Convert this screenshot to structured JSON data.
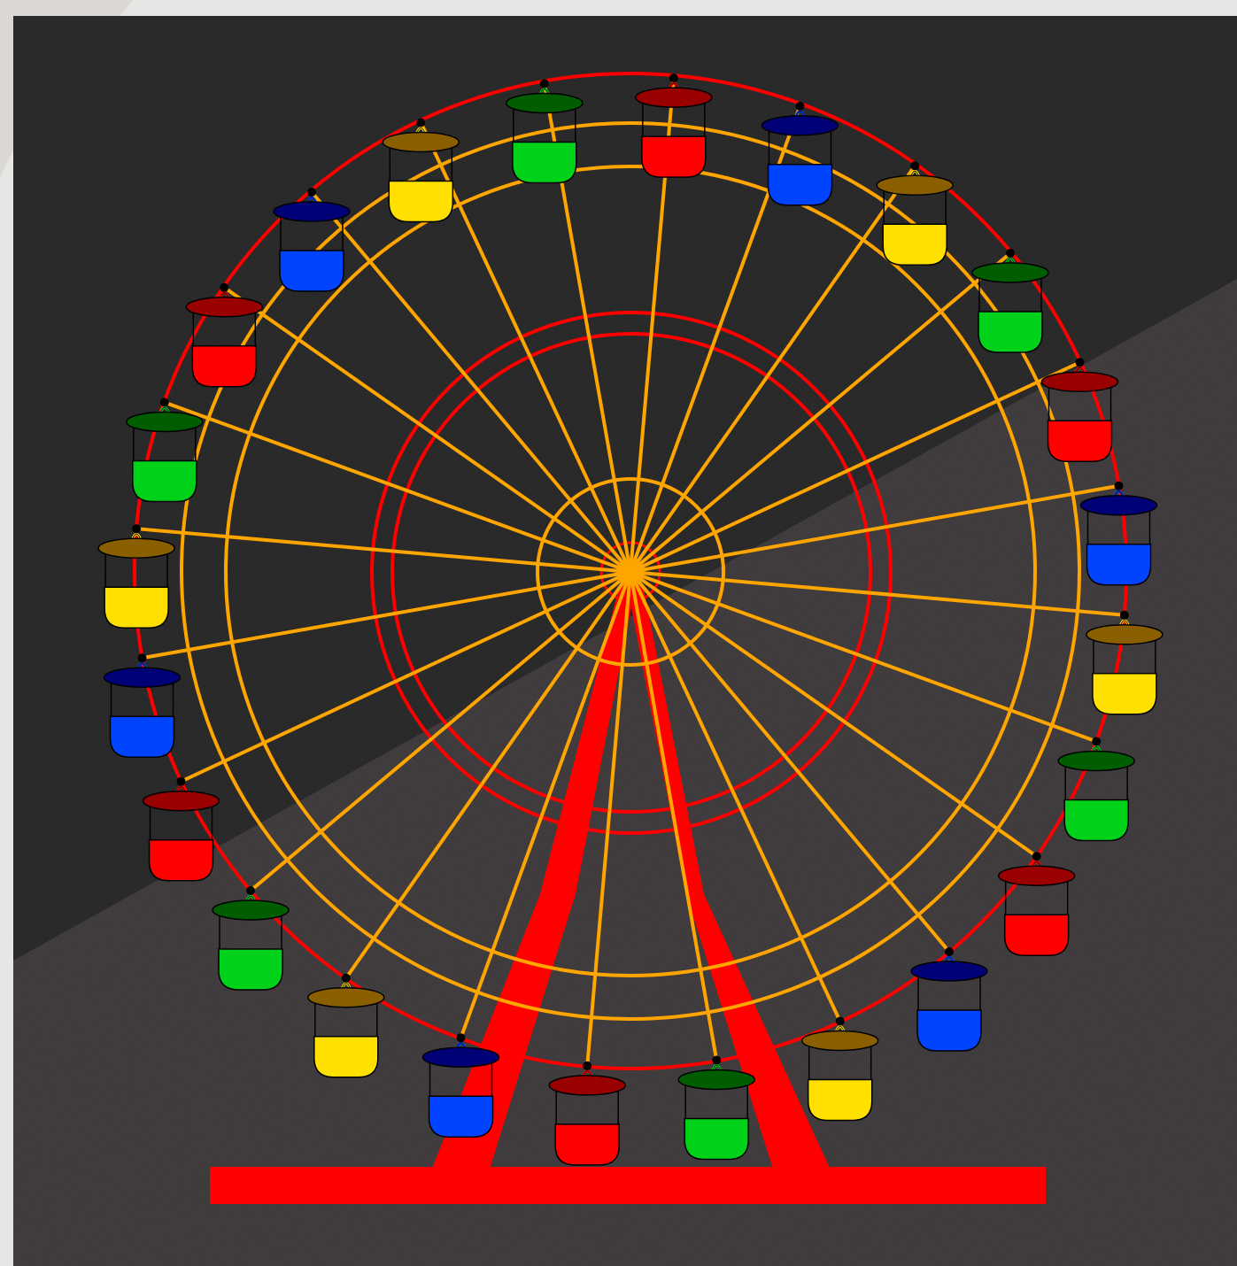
{
  "scene": {
    "subject": "ferris-wheel",
    "wheel": {
      "spoke_count": 24,
      "gondola_count": 24,
      "rim_color": "#ff0000",
      "spoke_color": "#ffa500",
      "support_color": "#ff0000"
    },
    "gondola_colors": [
      {
        "name": "red",
        "body": "#ff0000",
        "roof": "#990000"
      },
      {
        "name": "blue",
        "body": "#0044ff",
        "roof": "#000077"
      },
      {
        "name": "yellow",
        "body": "#ffe000",
        "roof": "#8a5f00"
      },
      {
        "name": "green",
        "body": "#00d21a",
        "roof": "#005d00"
      }
    ],
    "background_colors": {
      "frame": "#e6e6e4",
      "upper_panel": "#232323",
      "lower_panel": "#3a3638"
    }
  }
}
